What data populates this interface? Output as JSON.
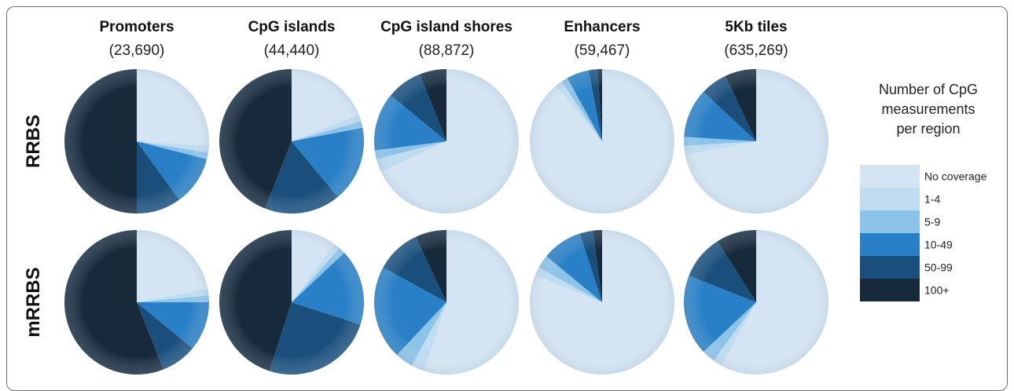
{
  "chart_data": {
    "type": "pie",
    "category_order": [
      "No coverage",
      "1-4",
      "5-9",
      "10-49",
      "50-99",
      "100+"
    ],
    "colors": [
      "#d4e4f2",
      "#bfdcf0",
      "#8cc3e8",
      "#2a80c6",
      "#1a4f7c",
      "#172a3c"
    ],
    "columns": [
      {
        "title": "Promoters",
        "count": "(23,690)"
      },
      {
        "title": "CpG islands",
        "count": "(44,440)"
      },
      {
        "title": "CpG island shores",
        "count": "(88,872)"
      },
      {
        "title": "Enhancers",
        "count": "(59,467)"
      },
      {
        "title": "5Kb tiles",
        "count": "(635,269)"
      }
    ],
    "rows": [
      {
        "label": "RRBS",
        "pies": [
          {
            "region": "Promoters",
            "values": [
              26,
              1.5,
              1.5,
              11,
              10,
              50
            ]
          },
          {
            "region": "CpG islands",
            "values": [
              19,
              1.5,
              1.5,
              17,
              17,
              44
            ]
          },
          {
            "region": "CpG island shores",
            "values": [
              68,
              3,
              2,
              13,
              8,
              6
            ]
          },
          {
            "region": "Enhancers",
            "values": [
              89,
              1.5,
              1.5,
              5,
              2,
              1
            ]
          },
          {
            "region": "5Kb tiles",
            "values": [
              72,
              2,
              2,
              11,
              6,
              7
            ]
          }
        ]
      },
      {
        "label": "mRRBS",
        "pies": [
          {
            "region": "Promoters",
            "values": [
              22,
              1.5,
              1.5,
              11,
              8,
              56
            ]
          },
          {
            "region": "CpG islands",
            "values": [
              10,
              1.5,
              1.5,
              17,
              25,
              45
            ]
          },
          {
            "region": "CpG island shores",
            "values": [
              55,
              3,
              4,
              21,
              10,
              7
            ]
          },
          {
            "region": "Enhancers",
            "values": [
              81,
              2,
              3,
              9,
              3,
              2
            ]
          },
          {
            "region": "5Kb tiles",
            "values": [
              58,
              2,
              3,
              18,
              10,
              9
            ]
          }
        ]
      }
    ],
    "legend": {
      "title_lines": [
        "Number of CpG",
        "measurements",
        "per region"
      ],
      "entries": [
        "No coverage",
        "1-4",
        "5-9",
        "10-49",
        "50-99",
        "100+"
      ],
      "placement": "right"
    }
  }
}
